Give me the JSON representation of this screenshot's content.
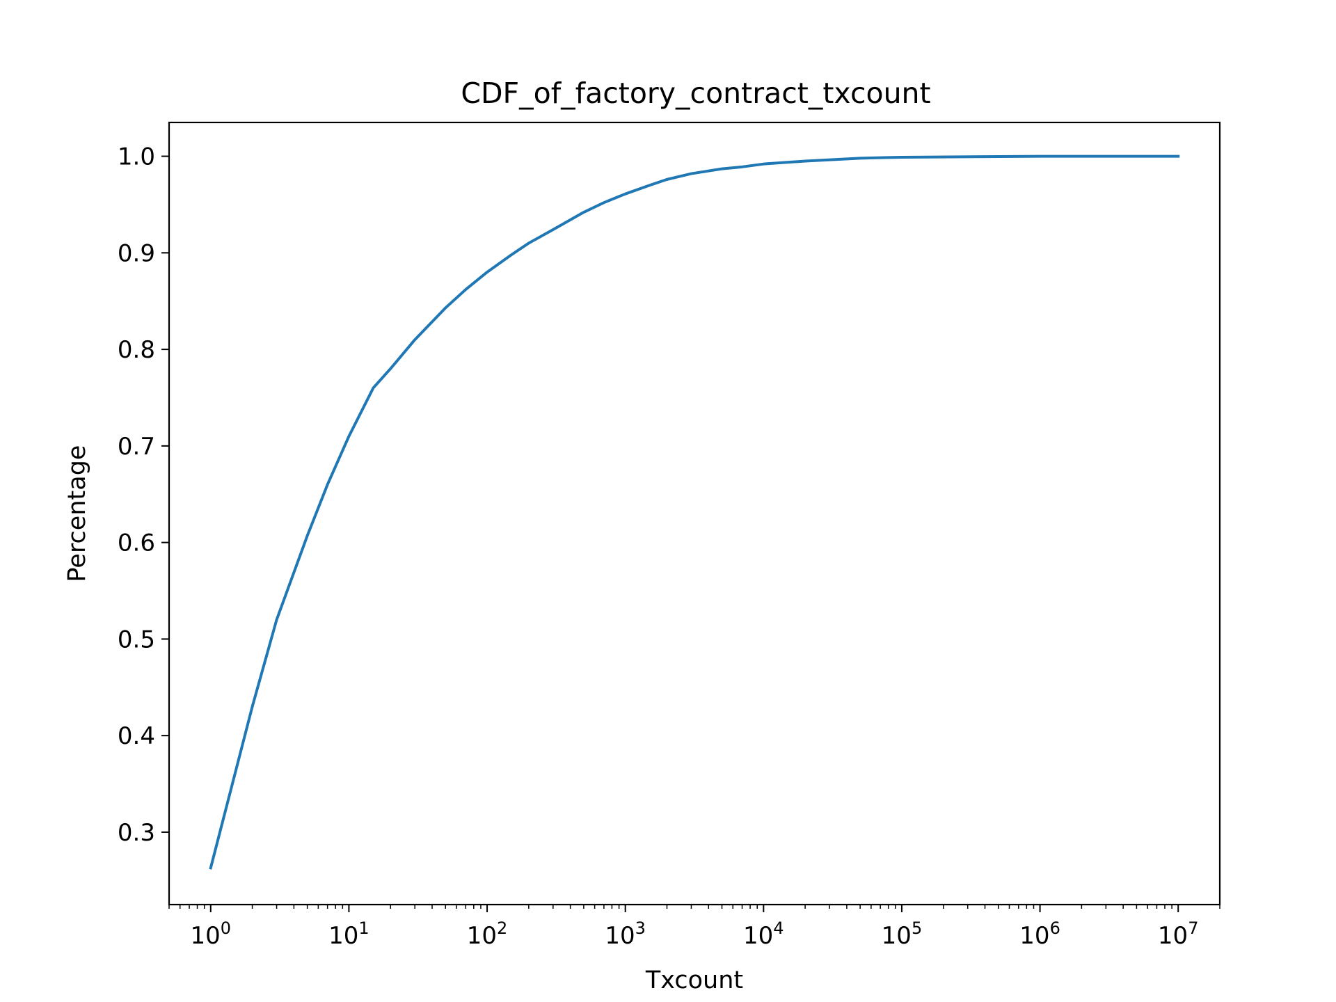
{
  "chart_data": {
    "type": "line",
    "title": "CDF_of_factory_contract_txcount",
    "xlabel": "Txcount",
    "ylabel": "Percentage",
    "x_scale": "log",
    "xlim": [
      0.5,
      20000000
    ],
    "ylim": [
      0.225,
      1.035
    ],
    "x_ticks": [
      {
        "value": 1,
        "base": "10",
        "exp": "0"
      },
      {
        "value": 10,
        "base": "10",
        "exp": "1"
      },
      {
        "value": 100,
        "base": "10",
        "exp": "2"
      },
      {
        "value": 1000,
        "base": "10",
        "exp": "3"
      },
      {
        "value": 10000,
        "base": "10",
        "exp": "4"
      },
      {
        "value": 100000,
        "base": "10",
        "exp": "5"
      },
      {
        "value": 1000000,
        "base": "10",
        "exp": "6"
      },
      {
        "value": 10000000,
        "base": "10",
        "exp": "7"
      }
    ],
    "y_ticks": [
      {
        "value": 0.3,
        "label": "0.3"
      },
      {
        "value": 0.4,
        "label": "0.4"
      },
      {
        "value": 0.5,
        "label": "0.5"
      },
      {
        "value": 0.6,
        "label": "0.6"
      },
      {
        "value": 0.7,
        "label": "0.7"
      },
      {
        "value": 0.8,
        "label": "0.8"
      },
      {
        "value": 0.9,
        "label": "0.9"
      },
      {
        "value": 1.0,
        "label": "1.0"
      }
    ],
    "grid": false,
    "legend": "none",
    "series": [
      {
        "color": "#1f77b4",
        "x": [
          1,
          2,
          3,
          5,
          7,
          10,
          15,
          20,
          30,
          50,
          70,
          100,
          150,
          200,
          300,
          500,
          700,
          1000,
          1500,
          2000,
          3000,
          5000,
          7000,
          10000,
          20000,
          50000,
          100000,
          1000000,
          10000000
        ],
        "y": [
          0.263,
          0.43,
          0.52,
          0.607,
          0.66,
          0.71,
          0.76,
          0.78,
          0.81,
          0.843,
          0.862,
          0.88,
          0.898,
          0.91,
          0.924,
          0.942,
          0.952,
          0.961,
          0.97,
          0.976,
          0.982,
          0.987,
          0.989,
          0.992,
          0.995,
          0.998,
          0.999,
          1.0,
          1.0
        ]
      }
    ]
  }
}
